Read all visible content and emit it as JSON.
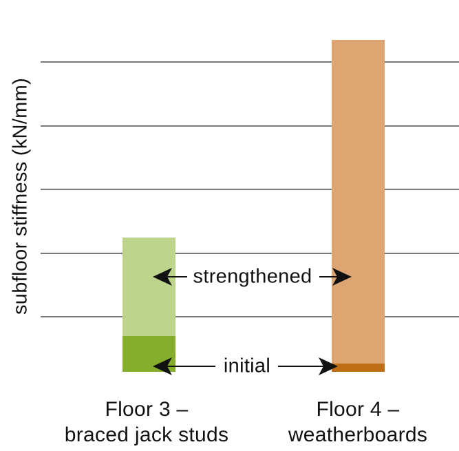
{
  "figure": {
    "ylabel": "subfloor stiffness (kN/mm)",
    "annotations": {
      "strengthened": "strengthened",
      "initial": "initial"
    },
    "category_labels": [
      {
        "line1": "Floor 3 –",
        "line2": "braced jack studs"
      },
      {
        "line1": "Floor 4 –",
        "line2": "weatherboards"
      }
    ],
    "colors": {
      "floor3_initial": "#84ae2c",
      "floor3_strengthened": "#bcd48c",
      "floor4_initial": "#bf6e15",
      "floor4_strengthened": "#dda572",
      "gridline": "#7a7a7a",
      "text": "#111111",
      "background": "#ffffff"
    }
  },
  "chart_data": {
    "type": "bar",
    "subtype": "stacked-column, annotated with arrows instead of legend",
    "title": "",
    "xlabel": "",
    "ylabel": "subfloor stiffness (kN/mm)",
    "categories": [
      "Floor 3 – braced jack studs",
      "Floor 4 – weatherboards"
    ],
    "series": [
      {
        "name": "initial",
        "values": [
          0.56,
          0.13
        ],
        "colors": [
          "#84ae2c",
          "#bf6e15"
        ],
        "note": "dark lower segment of each bar; values in gridline-spacing units (axis has no numeric tick labels)"
      },
      {
        "name": "strengthened",
        "values": [
          2.11,
          5.21
        ],
        "colors": [
          "#bcd48c",
          "#dda572"
        ],
        "note": "total bar height after strengthening; values in gridline-spacing units (axis has no numeric tick labels)"
      }
    ],
    "y_axis": {
      "tick_labels": [],
      "unlabeled": true,
      "gridlines_at_units": [
        0.86,
        1.86,
        2.86,
        3.86,
        4.86
      ],
      "ylim": [
        0,
        5.9
      ],
      "grid": true
    },
    "legend": "none — arrow callouts: 'strengthened' points to both full bars, 'initial' points to both dark bottom segments"
  }
}
